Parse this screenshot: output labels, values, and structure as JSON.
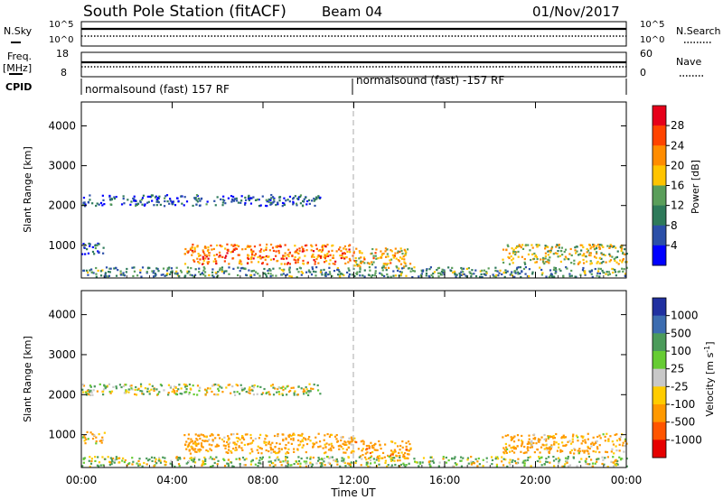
{
  "header": {
    "station": "South Pole Station (fitACF)",
    "beam": "Beam 04",
    "date": "01/Nov/2017"
  },
  "panels": {
    "nsky": {
      "label": "N.Sky",
      "ticks": [
        "10^5",
        "10^0"
      ]
    },
    "nsearch": {
      "label": "N.Search",
      "ticks": [
        "10^5",
        "10^0"
      ]
    },
    "freq": {
      "label_line1": "Freq.",
      "label_line2": "[MHz]",
      "ticks": [
        "18",
        "8"
      ]
    },
    "nave": {
      "label": "Nave",
      "ticks": [
        "60",
        "0"
      ]
    },
    "cpid": {
      "label": "CPID",
      "segments": [
        {
          "text": "normalsound (fast) 157 RF",
          "start": "00:00",
          "end": "12:00"
        },
        {
          "text": "normalsound (fast) -157 RF",
          "start": "12:00",
          "end": "24:00"
        }
      ]
    }
  },
  "colorbars": {
    "power": {
      "title": "Power [dB]",
      "ticks": [
        "28",
        "24",
        "20",
        "16",
        "12",
        "8",
        "4"
      ],
      "colors": [
        "#e6001a",
        "#ff4400",
        "#ff8c00",
        "#ffc400",
        "#5a9e5a",
        "#2e7a5a",
        "#2b4fa8",
        "#0000ff"
      ]
    },
    "velocity": {
      "title": "Velocity [m s",
      "title_sup": "-1",
      "title_end": "]",
      "ticks": [
        "1000",
        "500",
        "100",
        "25",
        "-25",
        "-100",
        "-500",
        "-1000"
      ],
      "colors": [
        "#2030a0",
        "#3c6cb0",
        "#4b9b5a",
        "#66cc33",
        "#c8c8c8",
        "#ffcc00",
        "#ff9900",
        "#ff5500",
        "#e60000"
      ]
    }
  },
  "chart_data": [
    {
      "type": "heatmap",
      "parameter": "Power",
      "ylabel": "Slant Range [km]",
      "xlabel": "Time UT",
      "xlim": [
        "00:00",
        "24:00"
      ],
      "ylim": [
        180,
        4600
      ],
      "x_ticks": [
        "00:00",
        "04:00",
        "08:00",
        "12:00",
        "16:00",
        "20:00",
        "00:00"
      ],
      "y_ticks": [
        1000,
        2000,
        3000,
        4000
      ],
      "color_range_db": [
        0,
        30
      ],
      "scatter_regions": [
        {
          "t0": 0.0,
          "t1": 10.5,
          "r_center": 2150,
          "r_width": 280,
          "value": 6
        },
        {
          "t0": 0.0,
          "t1": 1.0,
          "r_center": 950,
          "r_width": 300,
          "value": 8
        },
        {
          "t0": 4.5,
          "t1": 12.0,
          "r_center": 800,
          "r_width": 500,
          "value": 22
        },
        {
          "t0": 12.0,
          "t1": 14.5,
          "r_center": 700,
          "r_width": 500,
          "value": 18
        },
        {
          "t0": 18.5,
          "t1": 24.0,
          "r_center": 800,
          "r_width": 500,
          "value": 16
        },
        {
          "t0": 0.0,
          "t1": 24.0,
          "r_center": 350,
          "r_width": 250,
          "value": 10
        }
      ]
    },
    {
      "type": "heatmap",
      "parameter": "Velocity",
      "ylabel": "Slant Range [km]",
      "xlabel": "Time UT",
      "xlim": [
        "00:00",
        "24:00"
      ],
      "ylim": [
        180,
        4600
      ],
      "x_ticks": [
        "00:00",
        "04:00",
        "08:00",
        "12:00",
        "16:00",
        "20:00",
        "00:00"
      ],
      "y_ticks": [
        1000,
        2000,
        3000,
        4000
      ],
      "color_range_ms": [
        -1000,
        1000
      ],
      "scatter_regions": [
        {
          "t0": 0.0,
          "t1": 10.5,
          "r_center": 2150,
          "r_width": 280,
          "value": 0
        },
        {
          "t0": 0.0,
          "t1": 1.0,
          "r_center": 950,
          "r_width": 300,
          "value": -200
        },
        {
          "t0": 4.5,
          "t1": 12.0,
          "r_center": 800,
          "r_width": 500,
          "value": -250
        },
        {
          "t0": 12.0,
          "t1": 14.5,
          "r_center": 650,
          "r_width": 450,
          "value": -300
        },
        {
          "t0": 18.5,
          "t1": 24.0,
          "r_center": 800,
          "r_width": 500,
          "value": -200
        },
        {
          "t0": 0.0,
          "t1": 24.0,
          "r_center": 350,
          "r_width": 250,
          "value": 50
        }
      ]
    }
  ]
}
